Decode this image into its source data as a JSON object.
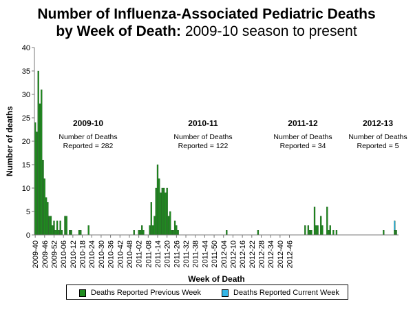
{
  "chart_data": {
    "type": "bar",
    "title_line1": "Number of Influenza-Associated Pediatric Deaths",
    "title_line2_bold": "by Week of Death:",
    "title_line2_rest": " 2009-10 season to present",
    "xlabel": "Week of Death",
    "ylabel": "Number of deaths",
    "ylim": [
      0,
      40
    ],
    "yticks": [
      0,
      5,
      10,
      15,
      20,
      25,
      30,
      35,
      40
    ],
    "first_week": "2009-40",
    "xtick_labels": [
      "2009-40",
      "2009-46",
      "2009-52",
      "2010-06",
      "2010-12",
      "2010-18",
      "2010-24",
      "2010-30",
      "2010-36",
      "2010-42",
      "2010-48",
      "2011-02",
      "2011-08",
      "2011-14",
      "2011-20",
      "2011-26",
      "2011-32",
      "2011-38",
      "2011-44",
      "2011-50",
      "2012-04",
      "2012-10",
      "2012-16",
      "2012-22",
      "2012-28",
      "2012-34",
      "2012-40",
      "2012-46"
    ],
    "series": [
      {
        "name": "Deaths Reported Previous Week",
        "color": "#1f8c1f",
        "values": [
          24,
          22,
          35,
          28,
          31,
          16,
          12,
          8,
          7,
          4,
          4,
          2,
          3,
          1,
          3,
          1,
          3,
          1,
          0,
          4,
          4,
          0,
          1,
          1,
          0,
          0,
          0,
          0,
          1,
          1,
          0,
          0,
          0,
          0,
          2,
          0,
          0,
          0,
          0,
          0,
          0,
          0,
          0,
          0,
          0,
          0,
          0,
          0,
          0,
          0,
          0,
          0,
          0,
          0,
          0,
          0,
          0,
          0,
          0,
          0,
          0,
          0,
          0,
          1,
          0,
          0,
          1,
          1,
          2,
          1,
          0,
          0,
          0,
          2,
          7,
          2,
          4,
          10,
          15,
          12,
          9,
          10,
          10,
          9,
          10,
          4,
          5,
          1,
          1,
          3,
          2,
          1,
          0,
          0,
          0,
          0,
          0,
          0,
          0,
          0,
          0,
          0,
          0,
          0,
          0,
          0,
          0,
          0,
          0,
          0,
          0,
          0,
          0,
          0,
          0,
          0,
          0,
          0,
          0,
          0,
          0,
          0,
          1,
          0,
          0,
          0,
          0,
          0,
          0,
          0,
          0,
          0,
          0,
          0,
          0,
          0,
          0,
          0,
          0,
          0,
          0,
          0,
          1,
          0,
          0,
          0,
          0,
          0,
          0,
          0,
          0,
          0,
          0,
          0,
          0,
          0,
          0,
          0,
          0,
          0,
          0,
          0,
          0,
          0,
          0,
          0,
          0,
          0,
          0,
          0,
          0,
          0,
          2,
          0,
          2,
          1,
          1,
          0,
          6,
          2,
          2,
          0,
          4,
          2,
          0,
          0,
          6,
          1,
          2,
          0,
          1,
          0,
          1,
          0,
          0,
          0,
          0,
          0,
          0,
          0,
          0,
          0,
          0,
          0,
          0,
          0,
          0,
          0,
          0,
          0,
          0,
          0,
          0,
          0,
          0,
          0,
          0,
          0,
          0,
          0,
          0,
          0,
          1,
          0,
          0,
          0,
          0,
          0,
          0,
          1,
          1,
          0
        ]
      },
      {
        "name": "Deaths Reported Current Week",
        "color": "#33b5e5",
        "values": [
          0,
          0,
          0,
          0,
          0,
          0,
          0,
          0,
          0,
          0,
          0,
          0,
          0,
          0,
          0,
          0,
          0,
          0,
          0,
          0,
          0,
          0,
          0,
          0,
          0,
          0,
          0,
          0,
          0,
          0,
          0,
          0,
          0,
          0,
          0,
          0,
          0,
          0,
          0,
          0,
          0,
          0,
          0,
          0,
          0,
          0,
          0,
          0,
          0,
          0,
          0,
          0,
          0,
          0,
          0,
          0,
          0,
          0,
          0,
          0,
          0,
          0,
          0,
          0,
          0,
          0,
          0,
          0,
          0,
          0,
          0,
          0,
          0,
          0,
          0,
          0,
          0,
          0,
          0,
          0,
          0,
          0,
          0,
          0,
          0,
          0,
          0,
          0,
          0,
          0,
          0,
          0,
          0,
          0,
          0,
          0,
          0,
          0,
          0,
          0,
          0,
          0,
          0,
          0,
          0,
          0,
          0,
          0,
          0,
          0,
          0,
          0,
          0,
          0,
          0,
          0,
          0,
          0,
          0,
          0,
          0,
          0,
          0,
          0,
          0,
          0,
          0,
          0,
          0,
          0,
          0,
          0,
          0,
          0,
          0,
          0,
          0,
          0,
          0,
          0,
          0,
          0,
          0,
          0,
          0,
          0,
          0,
          0,
          0,
          0,
          0,
          0,
          0,
          0,
          0,
          0,
          0,
          0,
          0,
          0,
          0,
          0,
          0,
          0,
          0,
          0,
          0,
          0,
          0,
          0,
          0,
          0,
          0,
          0,
          0,
          0,
          0,
          0,
          0,
          0,
          0,
          0,
          0,
          0,
          0,
          0,
          0,
          0,
          0,
          0,
          0,
          0,
          0,
          0,
          0,
          0,
          0,
          0,
          0,
          0,
          0,
          0,
          0,
          0,
          0,
          0,
          0,
          0,
          0,
          0,
          0,
          0,
          0,
          0,
          0,
          0,
          0,
          0,
          0,
          0,
          0,
          0,
          0,
          0,
          0,
          0,
          0,
          0,
          0,
          2
        ]
      }
    ],
    "annotations": [
      {
        "season": "2009-10",
        "line1": "Number of Deaths",
        "line2": "Reported = 282"
      },
      {
        "season": "2010-11",
        "line1": "Number of Deaths",
        "line2": "Reported = 122"
      },
      {
        "season": "2011-12",
        "line1": "Number of Deaths",
        "line2": "Reported = 34"
      },
      {
        "season": "2012-13",
        "line1": "Number of Deaths",
        "line2": "Reported = 5"
      }
    ],
    "grid": false,
    "legend_position": "bottom"
  }
}
